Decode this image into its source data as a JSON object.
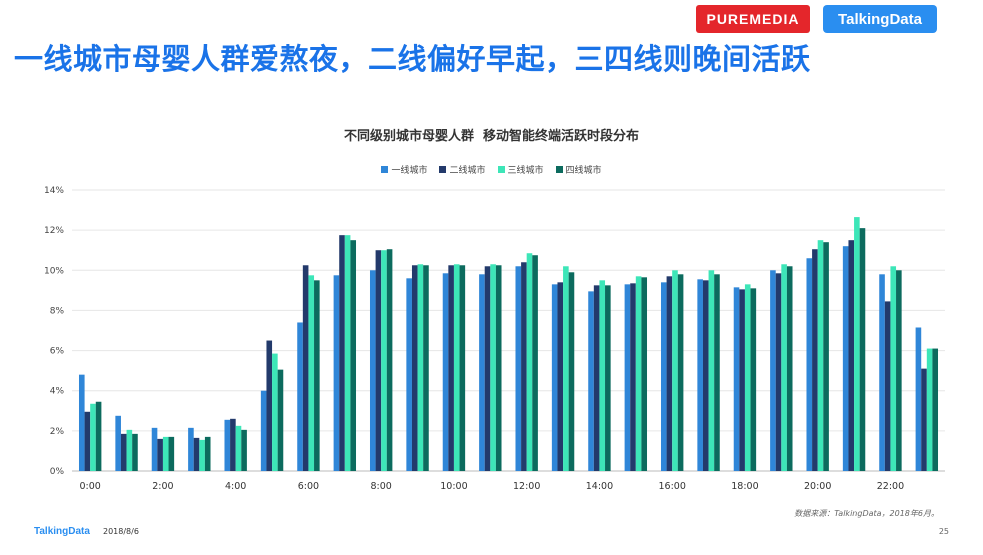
{
  "header": {
    "title": "一线城市母婴人群爱熬夜，二线偏好早起，三四线则晚间活跃",
    "logo_puremedia": "PUREMEDIA",
    "logo_talkingdata": "TalkingData"
  },
  "chart_data": {
    "type": "bar",
    "title": "不同级别城市母婴人群  移动智能终端活跃时段分布",
    "categories": [
      "0:00",
      "1:00",
      "2:00",
      "3:00",
      "4:00",
      "5:00",
      "6:00",
      "7:00",
      "8:00",
      "9:00",
      "10:00",
      "11:00",
      "12:00",
      "13:00",
      "14:00",
      "15:00",
      "16:00",
      "17:00",
      "18:00",
      "19:00",
      "20:00",
      "21:00",
      "22:00",
      "23:00"
    ],
    "x_tick_labels": [
      "0:00",
      "",
      "2:00",
      "",
      "4:00",
      "",
      "6:00",
      "",
      "8:00",
      "",
      "10:00",
      "",
      "12:00",
      "",
      "14:00",
      "",
      "16:00",
      "",
      "18:00",
      "",
      "20:00",
      "",
      "22:00",
      ""
    ],
    "series": [
      {
        "name": "一线城市",
        "color": "#2f86d8",
        "values": [
          4.8,
          2.75,
          2.15,
          2.15,
          2.55,
          4.0,
          7.4,
          9.75,
          10.0,
          9.6,
          9.85,
          9.8,
          10.2,
          9.3,
          8.95,
          9.3,
          9.4,
          9.55,
          9.15,
          10.0,
          10.6,
          11.2,
          9.8,
          7.15
        ]
      },
      {
        "name": "二线城市",
        "color": "#233a6b",
        "values": [
          2.95,
          1.85,
          1.6,
          1.65,
          2.6,
          6.5,
          10.25,
          11.75,
          11.0,
          10.25,
          10.25,
          10.2,
          10.4,
          9.4,
          9.25,
          9.35,
          9.7,
          9.5,
          9.05,
          9.85,
          11.05,
          11.5,
          8.45,
          5.1
        ]
      },
      {
        "name": "三线城市",
        "color": "#3de6b8",
        "values": [
          3.35,
          2.05,
          1.7,
          1.55,
          2.25,
          5.85,
          9.75,
          11.75,
          11.0,
          10.3,
          10.3,
          10.3,
          10.85,
          10.2,
          9.5,
          9.7,
          10.0,
          10.0,
          9.3,
          10.3,
          11.5,
          12.65,
          10.2,
          6.1
        ]
      },
      {
        "name": "四线城市",
        "color": "#0c6b5e",
        "values": [
          3.45,
          1.85,
          1.7,
          1.7,
          2.05,
          5.05,
          9.5,
          11.5,
          11.05,
          10.25,
          10.25,
          10.25,
          10.75,
          9.9,
          9.25,
          9.65,
          9.8,
          9.8,
          9.1,
          10.2,
          11.4,
          12.1,
          10.0,
          6.1
        ]
      }
    ],
    "y_tick_labels": [
      "0%",
      "2%",
      "4%",
      "6%",
      "8%",
      "10%",
      "12%",
      "14%"
    ],
    "ylim": [
      0,
      14
    ],
    "y_unit": "%",
    "grid": true,
    "legend_position": "top-center"
  },
  "footer": {
    "source": "数据来源：TalkingData，2018年6月。",
    "brand": "TalkingData",
    "date": "2018/8/6",
    "page_number": "25"
  }
}
